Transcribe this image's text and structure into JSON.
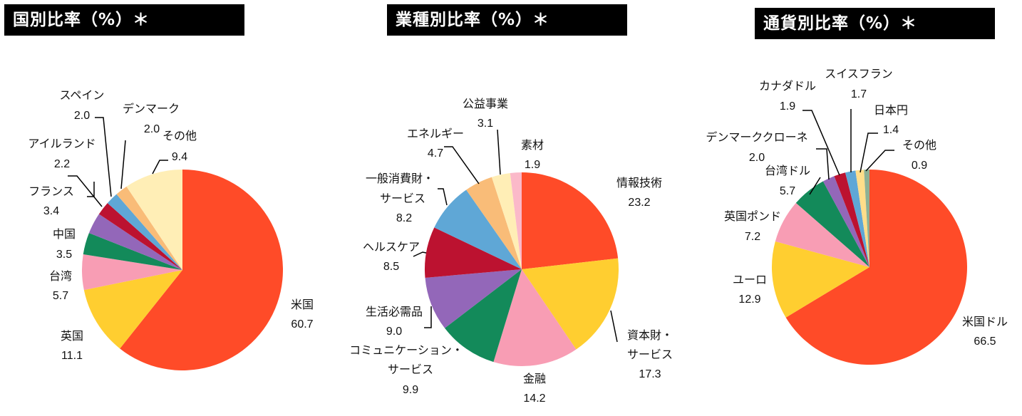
{
  "titles": {
    "country": "国別比率（%）＊",
    "sector": "業種別比率（%）＊",
    "currency": "通貨別比率（%）＊"
  },
  "colors": {
    "red": "#FF4B28",
    "yellow": "#FFCE30",
    "pink": "#F89DB4",
    "green": "#138A5A",
    "purple": "#9367B9",
    "crimson": "#BC1230",
    "blue": "#5FA7D6",
    "orange": "#F9BC78",
    "cream": "#FFEEB6",
    "lightpink": "#FBB9C9",
    "lightyellow": "#FFDE8A",
    "sage": "#8EB195"
  },
  "chart_data": [
    {
      "type": "pie",
      "title": "国別比率（%）＊",
      "categories": [
        "米国",
        "英国",
        "台湾",
        "中国",
        "フランス",
        "アイルランド",
        "スペイン",
        "デンマーク",
        "その他"
      ],
      "values": [
        60.7,
        11.1,
        5.7,
        3.5,
        3.4,
        2.2,
        2.0,
        2.0,
        9.4
      ],
      "colors": [
        "#FF4B28",
        "#FFCE30",
        "#F89DB4",
        "#138A5A",
        "#9367B9",
        "#BC1230",
        "#5FA7D6",
        "#F9BC78",
        "#FFEEB6"
      ],
      "start": "12 o'clock, clockwise"
    },
    {
      "type": "pie",
      "title": "業種別比率（%）＊",
      "categories": [
        "情報技術",
        "資本財・サービス",
        "金融",
        "コミュニケーション・サービス",
        "生活必需品",
        "ヘルスケア",
        "一般消費財・サービス",
        "エネルギー",
        "公益事業",
        "素材"
      ],
      "values": [
        23.2,
        17.3,
        14.2,
        9.9,
        9.0,
        8.5,
        8.2,
        4.7,
        3.1,
        1.9
      ],
      "colors": [
        "#FF4B28",
        "#FFCE30",
        "#F89DB4",
        "#138A5A",
        "#9367B9",
        "#BC1230",
        "#5FA7D6",
        "#F9BC78",
        "#FFEEB6",
        "#FBB9C9"
      ],
      "start": "12 o'clock, clockwise"
    },
    {
      "type": "pie",
      "title": "通貨別比率（%）＊",
      "categories": [
        "米国ドル",
        "ユーロ",
        "英国ポンド",
        "台湾ドル",
        "デンマーククローネ",
        "カナダドル",
        "スイスフラン",
        "日本円",
        "その他"
      ],
      "values": [
        66.5,
        12.9,
        7.2,
        5.7,
        2.0,
        1.9,
        1.7,
        1.4,
        0.9
      ],
      "colors": [
        "#FF4B28",
        "#FFCE30",
        "#F89DB4",
        "#138A5A",
        "#9367B9",
        "#BC1230",
        "#5FA7D6",
        "#FFDE8A",
        "#8EB195"
      ],
      "start": "12 o'clock, clockwise"
    }
  ],
  "labels": {
    "country": [
      {
        "name": "米国",
        "value": "60.7"
      },
      {
        "name": "英国",
        "value": "11.1"
      },
      {
        "name": "台湾",
        "value": "5.7"
      },
      {
        "name": "中国",
        "value": "3.5"
      },
      {
        "name": "フランス",
        "value": "3.4"
      },
      {
        "name": "アイルランド",
        "value": "2.2"
      },
      {
        "name": "スペイン",
        "value": "2.0"
      },
      {
        "name": "デンマーク",
        "value": "2.0"
      },
      {
        "name": "その他",
        "value": "9.4"
      }
    ],
    "sector": [
      {
        "name": "情報技術",
        "value": "23.2"
      },
      {
        "name": "資本財・",
        "name2": "サービス",
        "value": "17.3"
      },
      {
        "name": "金融",
        "value": "14.2"
      },
      {
        "name": "コミュニケーション・",
        "name2": "サービス",
        "value": "9.9"
      },
      {
        "name": "生活必需品",
        "value": "9.0"
      },
      {
        "name": "ヘルスケア",
        "value": "8.5"
      },
      {
        "name": "一般消費財・",
        "name2": "サービス",
        "value": "8.2"
      },
      {
        "name": "エネルギー",
        "value": "4.7"
      },
      {
        "name": "公益事業",
        "value": "3.1"
      },
      {
        "name": "素材",
        "value": "1.9"
      }
    ],
    "currency": [
      {
        "name": "米国ドル",
        "value": "66.5"
      },
      {
        "name": "ユーロ",
        "value": "12.9"
      },
      {
        "name": "英国ポンド",
        "value": "7.2"
      },
      {
        "name": "台湾ドル",
        "value": "5.7"
      },
      {
        "name": "デンマーククローネ",
        "value": "2.0"
      },
      {
        "name": "カナダドル",
        "value": "1.9"
      },
      {
        "name": "スイスフラン",
        "value": "1.7"
      },
      {
        "name": "日本円",
        "value": "1.4"
      },
      {
        "name": "その他",
        "value": "0.9"
      }
    ]
  }
}
